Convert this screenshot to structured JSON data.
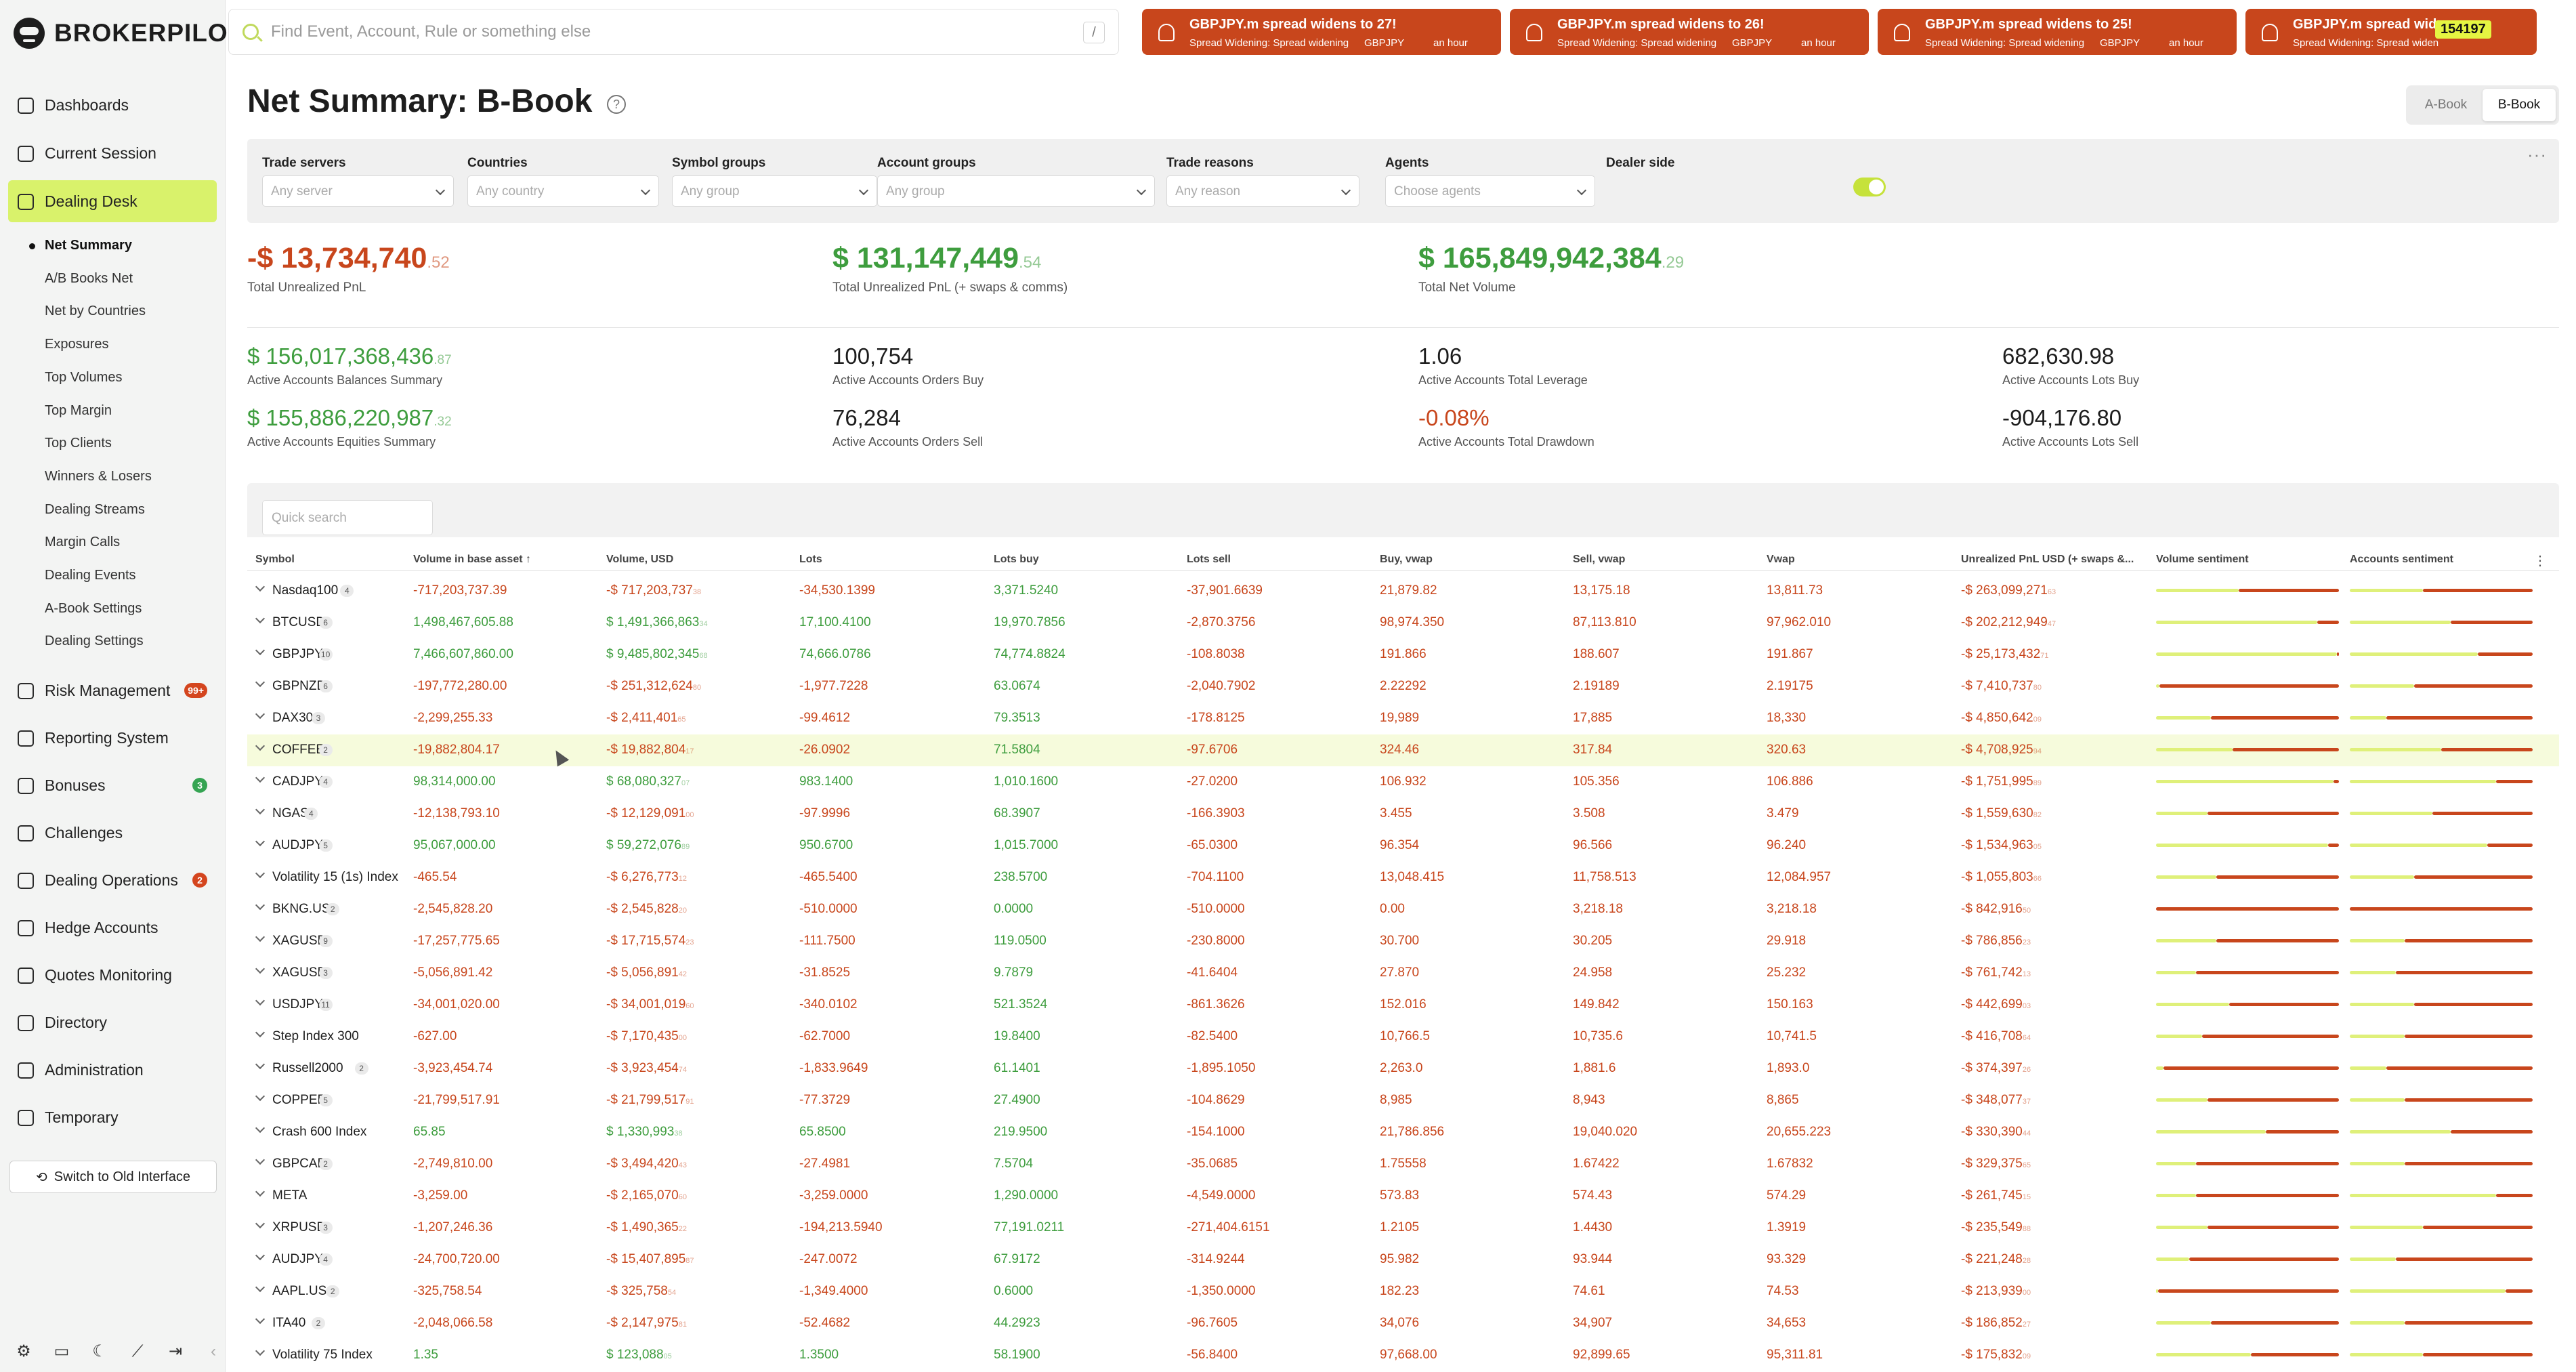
{
  "app": {
    "logo": "BROKERPILOT"
  },
  "search": {
    "placeholder": "Find Event, Account, Rule or something else",
    "shortcut": "/"
  },
  "alerts": [
    {
      "title": "GBPJPY.m spread widens to 27!",
      "subtitle": "Spread Widening: Spread widening",
      "symbol": "GBPJPY",
      "time": "an hour"
    },
    {
      "title": "GBPJPY.m spread widens to 26!",
      "subtitle": "Spread Widening: Spread widening",
      "symbol": "GBPJPY",
      "time": "an hour"
    },
    {
      "title": "GBPJPY.m spread widens to 25!",
      "subtitle": "Spread Widening: Spread widening",
      "symbol": "GBPJPY",
      "time": "an hour"
    },
    {
      "title": "GBPJPY.m spread widens",
      "subtitle": "Spread Widening: Spread widen",
      "symbol": "",
      "time": ""
    }
  ],
  "alert_count": "154197",
  "sidebar": {
    "items": [
      {
        "label": "Dashboards"
      },
      {
        "label": "Current Session"
      },
      {
        "label": "Dealing Desk",
        "active": true
      },
      {
        "label": "Risk Management",
        "badge": "99+"
      },
      {
        "label": "Reporting System"
      },
      {
        "label": "Bonuses",
        "badge": "3"
      },
      {
        "label": "Challenges"
      },
      {
        "label": "Dealing Operations",
        "badge": "2"
      },
      {
        "label": "Hedge Accounts"
      },
      {
        "label": "Quotes Monitoring"
      },
      {
        "label": "Directory"
      },
      {
        "label": "Administration"
      },
      {
        "label": "Temporary"
      }
    ],
    "subitems": [
      "Net Summary",
      "A/B Books Net",
      "Net by Countries",
      "Exposures",
      "Top Volumes",
      "Top Margin",
      "Top Clients",
      "Winners & Losers",
      "Dealing Streams",
      "Margin Calls",
      "Dealing Events",
      "A-Book Settings",
      "Dealing Settings"
    ],
    "old_interface": "Switch to Old Interface"
  },
  "page": {
    "title": "Net Summary: B-Book",
    "book_a": "A-Book",
    "book_b": "B-Book"
  },
  "filters": [
    {
      "label": "Trade servers",
      "placeholder": "Any server"
    },
    {
      "label": "Countries",
      "placeholder": "Any country"
    },
    {
      "label": "Symbol groups",
      "placeholder": "Any group"
    },
    {
      "label": "Account groups",
      "placeholder": "Any group"
    },
    {
      "label": "Trade reasons",
      "placeholder": "Any reason"
    },
    {
      "label": "Agents",
      "placeholder": "Choose agents"
    },
    {
      "label": "Dealer side"
    }
  ],
  "kpis": [
    {
      "value": "-$ 13,734,740",
      "dec": ".52",
      "label": "Total Unrealized PnL"
    },
    {
      "value": "$ 131,147,449",
      "dec": ".54",
      "label": "Total Unrealized PnL (+ swaps & comms)"
    },
    {
      "value": "$ 165,849,942,384",
      "dec": ".29",
      "label": "Total Net Volume"
    }
  ],
  "stats": [
    {
      "value": "$ 156,017,368,436",
      "dec": ".87",
      "label": "Active Accounts Balances Summary"
    },
    {
      "value": "100,754",
      "dec": "",
      "label": "Active Accounts Orders Buy"
    },
    {
      "value": "1.06",
      "dec": "",
      "label": "Active Accounts Total Leverage"
    },
    {
      "value": "682,630.98",
      "dec": "",
      "label": "Active Accounts Lots Buy"
    },
    {
      "value": "$ 155,886,220,987",
      "dec": ".32",
      "label": "Active Accounts Equities Summary"
    },
    {
      "value": "76,284",
      "dec": "",
      "label": "Active Accounts Orders Sell"
    },
    {
      "value": "-0.08%",
      "dec": "",
      "label": "Active Accounts Total Drawdown"
    },
    {
      "value": "-904,176.80",
      "dec": "",
      "label": "Active Accounts Lots Sell"
    }
  ],
  "table": {
    "quick_search": "Quick search",
    "columns": [
      "Symbol",
      "Volume in base asset ↑",
      "Volume, USD",
      "Lots",
      "Lots buy",
      "Lots sell",
      "Buy, vwap",
      "Sell, vwap",
      "Vwap",
      "Unrealized PnL USD (+ swaps &...",
      "Volume sentiment",
      "Accounts sentiment"
    ],
    "rows": [
      {
        "symbol": "Nasdaq100",
        "count": "4",
        "vol_base": "-717,203,737.39",
        "vol_usd": "-$ 717,203,737",
        "vol_usd_dec": "38",
        "lots": "-34,530.1399",
        "lots_buy": "3,371.5240",
        "lots_sell": "-37,901.6639",
        "buy_vwap": "21,879.82",
        "sell_vwap": "13,175.18",
        "vwap": "13,811.73",
        "pnl": "-$ 263,099,271",
        "pnl_dec": "63",
        "vs": 0.45,
        "as": 0.4
      },
      {
        "symbol": "BTCUSD",
        "count": "6",
        "vol_base": "1,498,467,605.88",
        "vol_usd": "$ 1,491,366,863",
        "vol_usd_dec": "34",
        "lots": "17,100.4100",
        "lots_buy": "19,970.7856",
        "lots_sell": "-2,870.3756",
        "buy_vwap": "98,974.350",
        "sell_vwap": "87,113.810",
        "vwap": "97,962.010",
        "pnl": "-$ 202,212,949",
        "pnl_dec": "47",
        "vs": 0.88,
        "as": 0.55
      },
      {
        "symbol": "GBPJPY",
        "count": "10",
        "vol_base": "7,466,607,860.00",
        "vol_usd": "$ 9,485,802,345",
        "vol_usd_dec": "68",
        "lots": "74,666.0786",
        "lots_buy": "74,774.8824",
        "lots_sell": "-108.8038",
        "buy_vwap": "191.866",
        "sell_vwap": "188.607",
        "vwap": "191.867",
        "pnl": "-$ 25,173,432",
        "pnl_dec": "71",
        "vs": 0.99,
        "as": 0.7
      },
      {
        "symbol": "GBPNZD",
        "count": "6",
        "vol_base": "-197,772,280.00",
        "vol_usd": "-$ 251,312,624",
        "vol_usd_dec": "80",
        "lots": "-1,977.7228",
        "lots_buy": "63.0674",
        "lots_sell": "-2,040.7902",
        "buy_vwap": "2.22292",
        "sell_vwap": "2.19189",
        "vwap": "2.19175",
        "pnl": "-$ 7,410,737",
        "pnl_dec": "80",
        "vs": 0.02,
        "as": 0.35
      },
      {
        "symbol": "DAX30",
        "count": "3",
        "vol_base": "-2,299,255.33",
        "vol_usd": "-$ 2,411,401",
        "vol_usd_dec": "65",
        "lots": "-99.4612",
        "lots_buy": "79.3513",
        "lots_sell": "-178.8125",
        "buy_vwap": "19,989",
        "sell_vwap": "17,885",
        "vwap": "18,330",
        "pnl": "-$ 4,850,642",
        "pnl_dec": "09",
        "vs": 0.3,
        "as": 0.2
      },
      {
        "symbol": "COFFEE",
        "count": "2",
        "vol_base": "-19,882,804.17",
        "vol_usd": "-$ 19,882,804",
        "vol_usd_dec": "17",
        "lots": "-26.0902",
        "lots_buy": "71.5804",
        "lots_sell": "-97.6706",
        "buy_vwap": "324.46",
        "sell_vwap": "317.84",
        "vwap": "320.63",
        "pnl": "-$ 4,708,925",
        "pnl_dec": "94",
        "vs": 0.42,
        "as": 0.5,
        "hl": true
      },
      {
        "symbol": "CADJPY",
        "count": "4",
        "vol_base": "98,314,000.00",
        "vol_usd": "$ 68,080,327",
        "vol_usd_dec": "07",
        "lots": "983.1400",
        "lots_buy": "1,010.1600",
        "lots_sell": "-27.0200",
        "buy_vwap": "106.932",
        "sell_vwap": "105.356",
        "vwap": "106.886",
        "pnl": "-$ 1,751,995",
        "pnl_dec": "89",
        "vs": 0.97,
        "as": 0.8
      },
      {
        "symbol": "NGAS",
        "count": "4",
        "vol_base": "-12,138,793.10",
        "vol_usd": "-$ 12,129,091",
        "vol_usd_dec": "00",
        "lots": "-97.9996",
        "lots_buy": "68.3907",
        "lots_sell": "-166.3903",
        "buy_vwap": "3.455",
        "sell_vwap": "3.508",
        "vwap": "3.479",
        "pnl": "-$ 1,559,630",
        "pnl_dec": "82",
        "vs": 0.28,
        "as": 0.45
      },
      {
        "symbol": "AUDJPY",
        "count": "5",
        "vol_base": "95,067,000.00",
        "vol_usd": "$ 59,272,076",
        "vol_usd_dec": "89",
        "lots": "950.6700",
        "lots_buy": "1,015.7000",
        "lots_sell": "-65.0300",
        "buy_vwap": "96.354",
        "sell_vwap": "96.566",
        "vwap": "96.240",
        "pnl": "-$ 1,534,963",
        "pnl_dec": "05",
        "vs": 0.94,
        "as": 0.75
      },
      {
        "symbol": "Volatility 15 (1s) Index",
        "count": "",
        "vol_base": "-465.54",
        "vol_usd": "-$ 6,276,773",
        "vol_usd_dec": "12",
        "lots": "-465.5400",
        "lots_buy": "238.5700",
        "lots_sell": "-704.1100",
        "buy_vwap": "13,048.415",
        "sell_vwap": "11,758.513",
        "vwap": "12,084.957",
        "pnl": "-$ 1,055,803",
        "pnl_dec": "66",
        "vs": 0.33,
        "as": 0.35
      },
      {
        "symbol": "BKNG.US",
        "count": "2",
        "vol_base": "-2,545,828.20",
        "vol_usd": "-$ 2,545,828",
        "vol_usd_dec": "20",
        "lots": "-510.0000",
        "lots_buy": "0.0000",
        "lots_sell": "-510.0000",
        "buy_vwap": "0.00",
        "sell_vwap": "3,218.18",
        "vwap": "3,218.18",
        "pnl": "-$ 842,916",
        "pnl_dec": "50",
        "vs": 0.0,
        "as": 0.0
      },
      {
        "symbol": "XAGUSD",
        "count": "9",
        "vol_base": "-17,257,775.65",
        "vol_usd": "-$ 17,715,574",
        "vol_usd_dec": "23",
        "lots": "-111.7500",
        "lots_buy": "119.0500",
        "lots_sell": "-230.8000",
        "buy_vwap": "30.700",
        "sell_vwap": "30.205",
        "vwap": "29.918",
        "pnl": "-$ 786,856",
        "pnl_dec": "23",
        "vs": 0.33,
        "as": 0.3
      },
      {
        "symbol": "XAGUSD",
        "count": "3",
        "vol_base": "-5,056,891.42",
        "vol_usd": "-$ 5,056,891",
        "vol_usd_dec": "42",
        "lots": "-31.8525",
        "lots_buy": "9.7879",
        "lots_sell": "-41.6404",
        "buy_vwap": "27.870",
        "sell_vwap": "24.958",
        "vwap": "25.232",
        "pnl": "-$ 761,742",
        "pnl_dec": "13",
        "vs": 0.22,
        "as": 0.25
      },
      {
        "symbol": "USDJPY",
        "count": "11",
        "vol_base": "-34,001,020.00",
        "vol_usd": "-$ 34,001,019",
        "vol_usd_dec": "60",
        "lots": "-340.0102",
        "lots_buy": "521.3524",
        "lots_sell": "-861.3626",
        "buy_vwap": "152.016",
        "sell_vwap": "149.842",
        "vwap": "150.163",
        "pnl": "-$ 442,699",
        "pnl_dec": "03",
        "vs": 0.4,
        "as": 0.35
      },
      {
        "symbol": "Step Index 300",
        "count": "",
        "vol_base": "-627.00",
        "vol_usd": "-$ 7,170,435",
        "vol_usd_dec": "00",
        "lots": "-62.7000",
        "lots_buy": "19.8400",
        "lots_sell": "-82.5400",
        "buy_vwap": "10,766.5",
        "sell_vwap": "10,735.6",
        "vwap": "10,741.5",
        "pnl": "-$ 416,708",
        "pnl_dec": "64",
        "vs": 0.25,
        "as": 0.3
      },
      {
        "symbol": "Russell2000",
        "count": "2",
        "vol_base": "-3,923,454.74",
        "vol_usd": "-$ 3,923,454",
        "vol_usd_dec": "74",
        "lots": "-1,833.9649",
        "lots_buy": "61.1401",
        "lots_sell": "-1,895.1050",
        "buy_vwap": "2,263.0",
        "sell_vwap": "1,881.6",
        "vwap": "1,893.0",
        "pnl": "-$ 374,397",
        "pnl_dec": "26",
        "vs": 0.04,
        "as": 0.2
      },
      {
        "symbol": "COPPER",
        "count": "5",
        "vol_base": "-21,799,517.91",
        "vol_usd": "-$ 21,799,517",
        "vol_usd_dec": "91",
        "lots": "-77.3729",
        "lots_buy": "27.4900",
        "lots_sell": "-104.8629",
        "buy_vwap": "8,985",
        "sell_vwap": "8,943",
        "vwap": "8,865",
        "pnl": "-$ 348,077",
        "pnl_dec": "37",
        "vs": 0.28,
        "as": 0.3
      },
      {
        "symbol": "Crash 600 Index",
        "count": "",
        "vol_base": "65.85",
        "vol_usd": "$ 1,330,993",
        "vol_usd_dec": "38",
        "lots": "65.8500",
        "lots_buy": "219.9500",
        "lots_sell": "-154.1000",
        "buy_vwap": "21,786.856",
        "sell_vwap": "19,040.020",
        "vwap": "20,655.223",
        "pnl": "-$ 330,390",
        "pnl_dec": "44",
        "vs": 0.6,
        "as": 0.55
      },
      {
        "symbol": "GBPCAD",
        "count": "2",
        "vol_base": "-2,749,810.00",
        "vol_usd": "-$ 3,494,420",
        "vol_usd_dec": "43",
        "lots": "-27.4981",
        "lots_buy": "7.5704",
        "lots_sell": "-35.0685",
        "buy_vwap": "1.75558",
        "sell_vwap": "1.67422",
        "vwap": "1.67832",
        "pnl": "-$ 329,375",
        "pnl_dec": "65",
        "vs": 0.22,
        "as": 0.3
      },
      {
        "symbol": "META",
        "count": "",
        "vol_base": "-3,259.00",
        "vol_usd": "-$ 2,165,070",
        "vol_usd_dec": "60",
        "lots": "-3,259.0000",
        "lots_buy": "1,290.0000",
        "lots_sell": "-4,549.0000",
        "buy_vwap": "573.83",
        "sell_vwap": "574.43",
        "vwap": "574.29",
        "pnl": "-$ 261,745",
        "pnl_dec": "15",
        "vs": 0.22,
        "as": 0.8
      },
      {
        "symbol": "XRPUSD",
        "count": "3",
        "vol_base": "-1,207,246.36",
        "vol_usd": "-$ 1,490,365",
        "vol_usd_dec": "22",
        "lots": "-194,213.5940",
        "lots_buy": "77,191.0211",
        "lots_sell": "-271,404.6151",
        "buy_vwap": "1.2105",
        "sell_vwap": "1.4430",
        "vwap": "1.3919",
        "pnl": "-$ 235,549",
        "pnl_dec": "88",
        "vs": 0.28,
        "as": 0.4
      },
      {
        "symbol": "AUDJPY",
        "count": "4",
        "vol_base": "-24,700,720.00",
        "vol_usd": "-$ 15,407,895",
        "vol_usd_dec": "87",
        "lots": "-247.0072",
        "lots_buy": "67.9172",
        "lots_sell": "-314.9244",
        "buy_vwap": "95.982",
        "sell_vwap": "93.944",
        "vwap": "93.329",
        "pnl": "-$ 221,248",
        "pnl_dec": "28",
        "vs": 0.18,
        "as": 0.25
      },
      {
        "symbol": "AAPL.US",
        "count": "2",
        "vol_base": "-325,758.54",
        "vol_usd": "-$ 325,758",
        "vol_usd_dec": "54",
        "lots": "-1,349.4000",
        "lots_buy": "0.6000",
        "lots_sell": "-1,350.0000",
        "buy_vwap": "182.23",
        "sell_vwap": "74.61",
        "vwap": "74.53",
        "pnl": "-$ 213,939",
        "pnl_dec": "00",
        "vs": 0.01,
        "as": 0.85
      },
      {
        "symbol": "ITA40",
        "count": "2",
        "vol_base": "-2,048,066.58",
        "vol_usd": "-$ 2,147,975",
        "vol_usd_dec": "81",
        "lots": "-52.4682",
        "lots_buy": "44.2923",
        "lots_sell": "-96.7605",
        "buy_vwap": "34,076",
        "sell_vwap": "34,907",
        "vwap": "34,653",
        "pnl": "-$ 186,852",
        "pnl_dec": "27",
        "vs": 0.3,
        "as": 0.3
      },
      {
        "symbol": "Volatility 75 Index",
        "count": "",
        "vol_base": "1.35",
        "vol_usd": "$ 123,088",
        "vol_usd_dec": "05",
        "lots": "1.3500",
        "lots_buy": "58.1900",
        "lots_sell": "-56.8400",
        "buy_vwap": "97,668.00",
        "sell_vwap": "92,899.65",
        "vwap": "95,311.81",
        "pnl": "-$ 175,832",
        "pnl_dec": "09",
        "vs": 0.52,
        "as": 0.4
      }
    ]
  },
  "colors": {
    "accent": "#d9f26b",
    "alert": "#c8461c",
    "positive": "#3e9d3e",
    "negative": "#c8461c"
  },
  "icons": [
    "search-icon",
    "bell-icon",
    "help-icon",
    "settings-icon",
    "monitor-icon",
    "moon-icon",
    "logout-icon"
  ]
}
